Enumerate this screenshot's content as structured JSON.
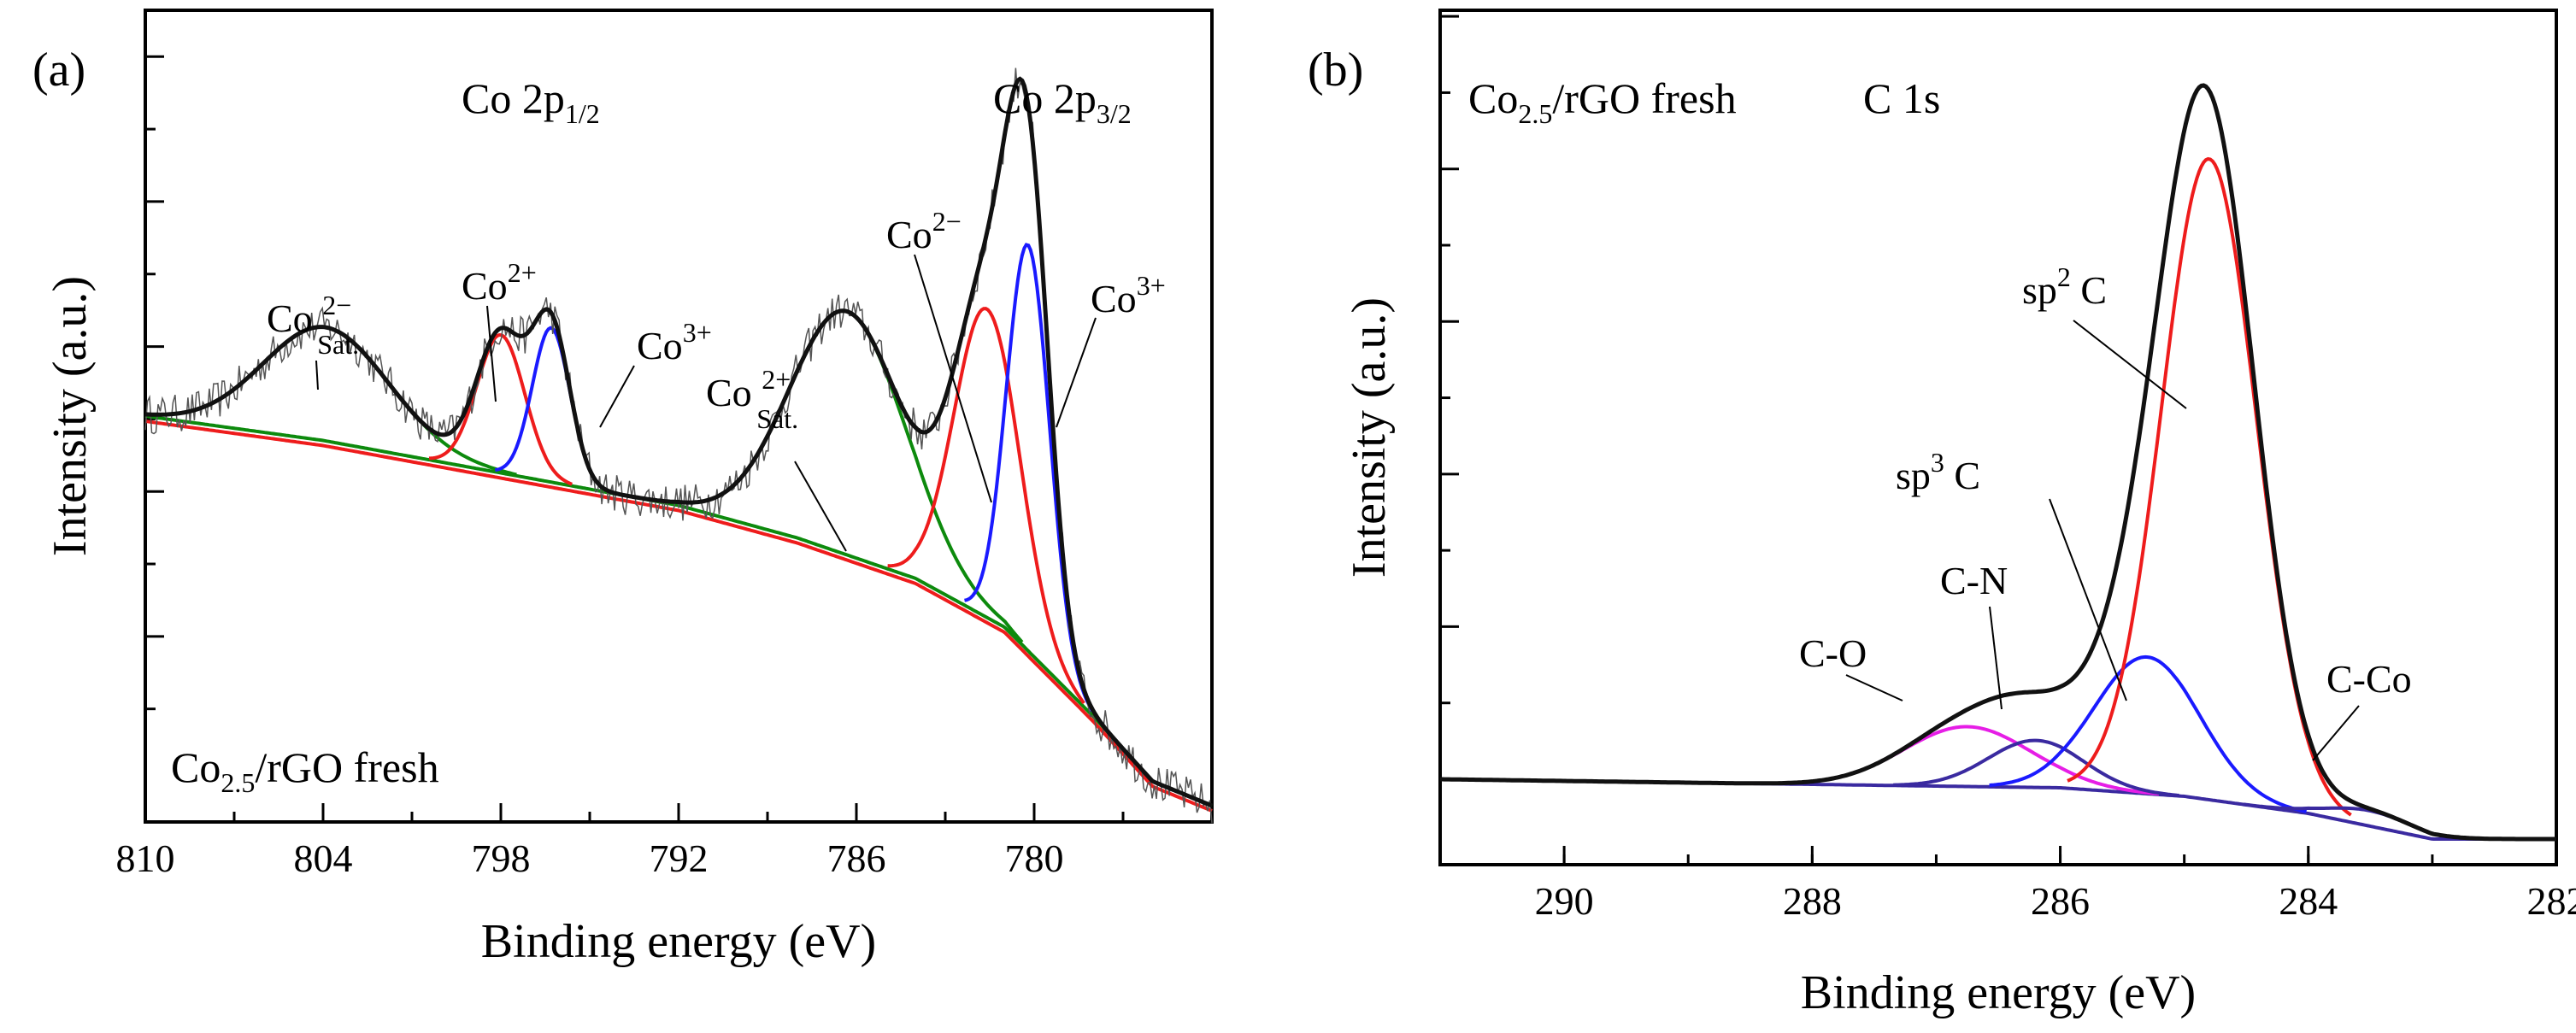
{
  "colors": {
    "black": "#111111",
    "red": "#ee1c1c",
    "blue": "#1a1aff",
    "green": "#0d8a0d",
    "magenta": "#e61ee6",
    "purple": "#3a2aa0"
  },
  "chart_data": [
    {
      "type": "line",
      "panel_label": "(a)",
      "xlabel": "Binding energy (eV)",
      "ylabel": "Intensity (a.u.)",
      "xlim": [
        810,
        774
      ],
      "x_reversed": true,
      "xticks": [
        810,
        804,
        798,
        792,
        786,
        780
      ],
      "ylim": [
        0,
        1.0
      ],
      "region_labels": {
        "left": {
          "main": "Co 2p",
          "sub": "1/2"
        },
        "right": {
          "main": "Co 2p",
          "sub": "3/2"
        }
      },
      "sample_label": {
        "main": "Co",
        "sub": "2.5",
        "rest": "/rGO fresh"
      },
      "peak_labels": [
        {
          "main": "Co ",
          "sup": "2−",
          "sub": "Sat.",
          "x": 804
        },
        {
          "main": "Co",
          "sup": "2+",
          "sub": "",
          "x": 798
        },
        {
          "main": "Co",
          "sup": "3+",
          "sub": "",
          "x": 796.4
        },
        {
          "main": "Co ",
          "sup": "2+",
          "sub": "Sat.",
          "x": 786
        },
        {
          "main": "Co",
          "sup": "2−",
          "sub": "",
          "x": 781.6
        },
        {
          "main": "Co",
          "sup": "3+",
          "sub": "",
          "x": 780
        }
      ],
      "background": {
        "x": [
          810,
          804,
          798,
          792,
          788,
          784,
          781,
          778,
          776,
          774
        ],
        "y": [
          0.5,
          0.47,
          0.43,
          0.39,
          0.35,
          0.3,
          0.24,
          0.13,
          0.05,
          0.02
        ]
      },
      "series": [
        {
          "name": "Co2+ sat. (803.9)",
          "color": "green",
          "center": 803.9,
          "fwhm": 5.0,
          "amp": 0.14
        },
        {
          "name": "Co2+ 2p1/2 (798.0)",
          "color": "red",
          "center": 798.0,
          "fwhm": 1.9,
          "amp": 0.17
        },
        {
          "name": "Co3+ 2p1/2 (796.3)",
          "color": "blue",
          "center": 796.3,
          "fwhm": 1.5,
          "amp": 0.19
        },
        {
          "name": "Co2+ sat. (786.3)",
          "color": "green",
          "center": 786.3,
          "fwhm": 4.6,
          "amp": 0.3
        },
        {
          "name": "Co2+ 2p3/2 (781.6)",
          "color": "red",
          "center": 781.6,
          "fwhm": 2.6,
          "amp": 0.38
        },
        {
          "name": "Co3+ 2p3/2 (780.2)",
          "color": "blue",
          "center": 780.2,
          "fwhm": 1.7,
          "amp": 0.5
        }
      ],
      "envelope_color": "black"
    },
    {
      "type": "line",
      "panel_label": "(b)",
      "xlabel": "Binding energy (eV)",
      "ylabel": "Intensity (a.u.)",
      "xlim": [
        291,
        282
      ],
      "x_reversed": true,
      "xticks": [
        290,
        288,
        286,
        284,
        282
      ],
      "ylim": [
        0,
        1.0
      ],
      "title": "C 1s",
      "sample_label": {
        "main": "Co",
        "sub": "2.5",
        "rest": "/rGO fresh"
      },
      "peak_labels": [
        {
          "main": "sp",
          "sup": "2",
          "rest": " C",
          "x": 284.8
        },
        {
          "main": "sp",
          "sup": "3",
          "rest": " C",
          "x": 285.3
        },
        {
          "main": "C-N",
          "x": 286.2
        },
        {
          "main": "C-O",
          "x": 286.8
        },
        {
          "main": "C-Co",
          "x": 283.3
        }
      ],
      "background": {
        "x": [
          291,
          286,
          285,
          284,
          283,
          282
        ],
        "y": [
          0.1,
          0.09,
          0.08,
          0.06,
          0.03,
          0.03
        ]
      },
      "series": [
        {
          "name": "C-O",
          "color": "magenta",
          "center": 286.75,
          "fwhm": 1.2,
          "amp": 0.07
        },
        {
          "name": "C-N",
          "color": "purple",
          "center": 286.2,
          "fwhm": 0.9,
          "amp": 0.055
        },
        {
          "name": "sp3 C",
          "color": "blue",
          "center": 285.3,
          "fwhm": 1.0,
          "amp": 0.16
        },
        {
          "name": "sp2 C",
          "color": "red",
          "center": 284.8,
          "fwhm": 0.9,
          "amp": 0.75
        },
        {
          "name": "C-Co",
          "color": "purple",
          "center": 283.5,
          "fwhm": 0.8,
          "amp": 0.018
        }
      ],
      "envelope_color": "black"
    }
  ]
}
